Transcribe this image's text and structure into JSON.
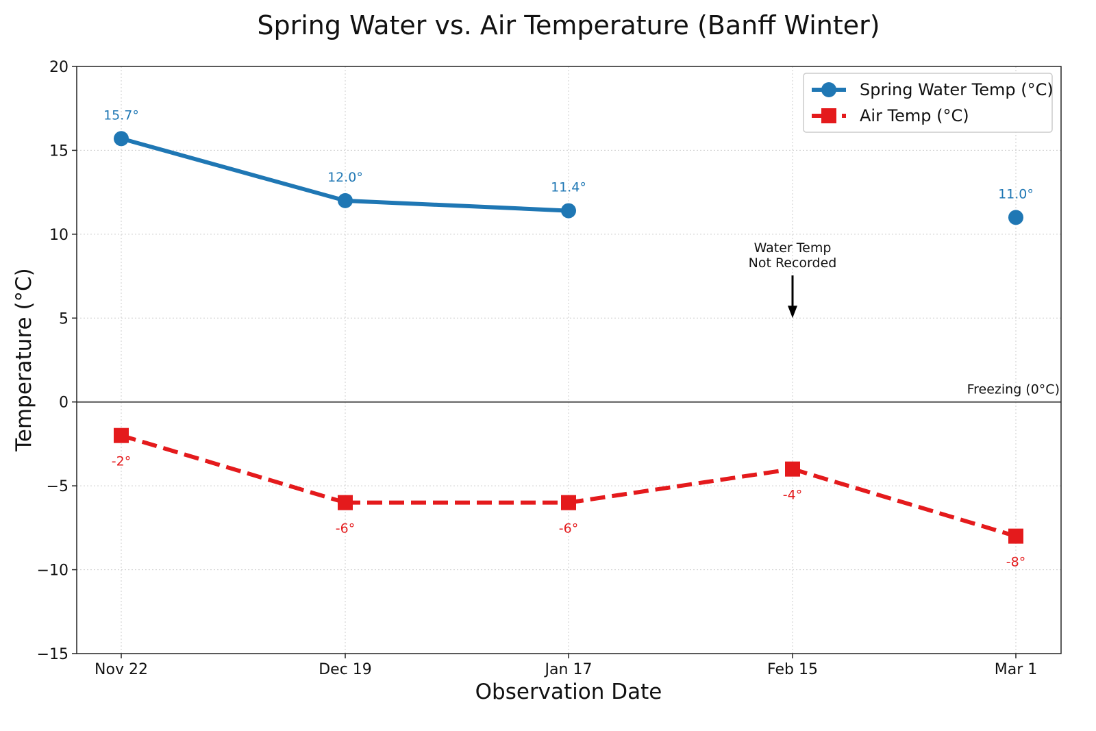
{
  "chart_data": {
    "type": "line",
    "title": "Spring Water vs. Air Temperature (Banff Winter)",
    "xlabel": "Observation Date",
    "ylabel": "Temperature (°C)",
    "categories": [
      "Nov 22",
      "Dec 19",
      "Jan 17",
      "Feb 15",
      "Mar 1"
    ],
    "ylim": [
      -15,
      20
    ],
    "yticks": [
      20,
      15,
      10,
      5,
      0,
      -5,
      -10,
      -15
    ],
    "ytick_labels": [
      "20",
      "15",
      "10",
      "5",
      "0",
      "−5",
      "−10",
      "−15"
    ],
    "grid": true,
    "legend_position": "top-right",
    "series": [
      {
        "name": "Spring Water Temp (°C)",
        "color": "#1f77b4",
        "marker": "circle",
        "line_style": "solid",
        "values": [
          15.7,
          12.0,
          11.4,
          null,
          11.0
        ],
        "labels": [
          "15.7°",
          "12.0°",
          "11.4°",
          "",
          "11.0°"
        ]
      },
      {
        "name": "Air Temp (°C)",
        "color": "#e41a1c",
        "marker": "square",
        "line_style": "dashed",
        "values": [
          -2,
          -6,
          -6,
          -4,
          -8
        ],
        "labels": [
          "-2°",
          "-6°",
          "-6°",
          "-4°",
          "-8°"
        ]
      }
    ],
    "reference_line": {
      "value": 0,
      "label": "Freezing (0°C)",
      "color": "#555555"
    },
    "annotations": [
      {
        "category": "Feb 15",
        "lines": [
          "Water Temp",
          "Not Recorded"
        ],
        "arrow_to": 5
      }
    ]
  }
}
